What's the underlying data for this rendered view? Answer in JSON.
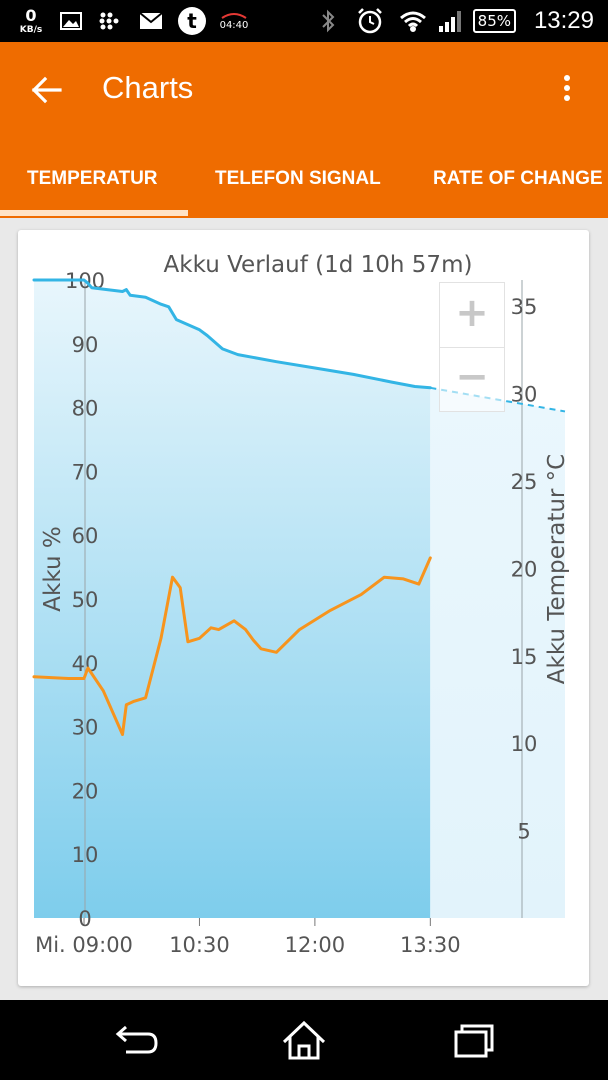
{
  "statusbar": {
    "net_speed_value": "0",
    "net_speed_unit": "KB/s",
    "alarm_time": "04:40",
    "battery": "85%",
    "clock": "13:29"
  },
  "appbar": {
    "title": "Charts",
    "tabs": [
      {
        "label": "TEMPERATUR",
        "active": true
      },
      {
        "label": "TELEFON SIGNAL",
        "active": false
      },
      {
        "label": "RATE OF CHANGE",
        "active": false
      }
    ],
    "accent_color": "#ef6c00"
  },
  "zoom": {
    "in_label": "+",
    "out_label": "−"
  },
  "chart_data": {
    "type": "line",
    "title": "Akku Verlauf (1d 10h 57m)",
    "ylabel_left": "Akku %",
    "ylabel_right": "Akku Temperatur °C",
    "x_ticks": [
      "Mi. 09:00",
      "10:30",
      "12:00",
      "13:30"
    ],
    "x_tick_hours": [
      9.0,
      10.5,
      12.0,
      13.5
    ],
    "xlim_hours": [
      8.35,
      15.25
    ],
    "now_hour": 13.5,
    "y_left_ticks": [
      0,
      10,
      20,
      30,
      40,
      50,
      60,
      70,
      80,
      90,
      100
    ],
    "ylim_left": [
      0,
      100
    ],
    "y_right_ticks": [
      5,
      10,
      15,
      20,
      25,
      30,
      35
    ],
    "ylim_right": [
      0,
      36.5
    ],
    "series": [
      {
        "name": "Akku %",
        "axis": "left",
        "color": "#33b5e5",
        "x": [
          8.35,
          9.0,
          9.05,
          9.1,
          9.3,
          9.5,
          9.55,
          9.6,
          9.8,
          10.0,
          10.1,
          10.2,
          10.5,
          10.6,
          10.8,
          11.0,
          11.5,
          12.0,
          12.5,
          13.0,
          13.3,
          13.5
        ],
        "y": [
          100,
          100,
          99.5,
          98.8,
          98.5,
          98.2,
          98.5,
          97.6,
          97.3,
          96.2,
          95.8,
          93.8,
          92.2,
          91.3,
          89.2,
          88.3,
          87.2,
          86.2,
          85.2,
          84.0,
          83.3,
          83.1
        ]
      },
      {
        "name": "Akku Temperatur",
        "axis": "right",
        "color": "#f7941d",
        "x": [
          8.35,
          8.8,
          9.0,
          9.05,
          9.25,
          9.5,
          9.55,
          9.65,
          9.8,
          10.0,
          10.15,
          10.25,
          10.35,
          10.5,
          10.65,
          10.75,
          10.95,
          11.1,
          11.2,
          11.3,
          11.5,
          11.8,
          12.2,
          12.6,
          12.9,
          13.15,
          13.35,
          13.5
        ],
        "y": [
          13.8,
          13.7,
          13.7,
          14.3,
          13.0,
          10.5,
          12.2,
          12.4,
          12.6,
          16.0,
          19.5,
          18.9,
          15.8,
          16.0,
          16.6,
          16.5,
          17.0,
          16.5,
          15.9,
          15.4,
          15.2,
          16.5,
          17.6,
          18.5,
          19.5,
          19.4,
          19.1,
          20.6
        ]
      }
    ],
    "projection": {
      "axis": "left",
      "color": "#33b5e5",
      "x": [
        13.5,
        15.25
      ],
      "y": [
        83.1,
        79.4
      ],
      "style": "dashed"
    },
    "full_charge_marker": {
      "axis": "left",
      "color": "#8bc34a",
      "x": [
        8.35,
        9.0
      ],
      "y": [
        100,
        100
      ]
    }
  }
}
